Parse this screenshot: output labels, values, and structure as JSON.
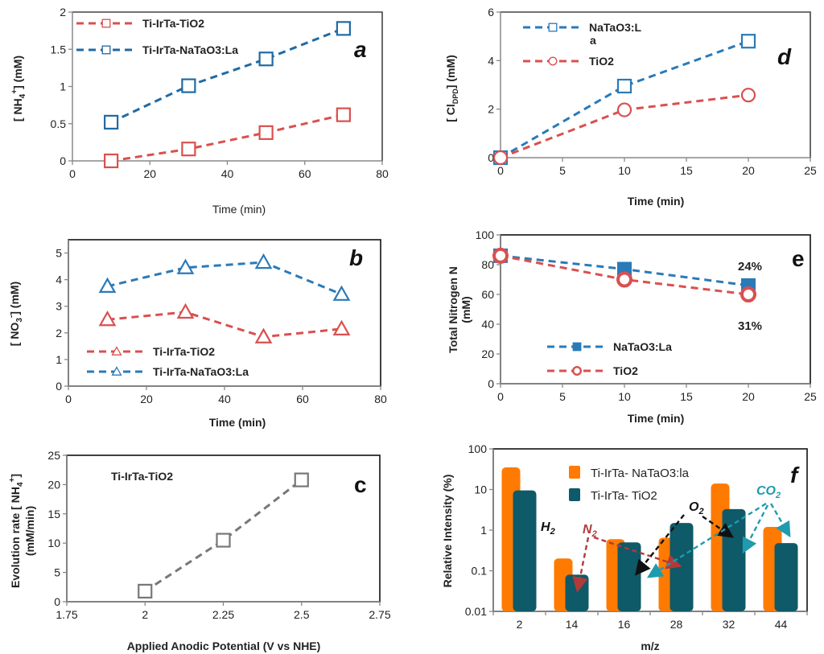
{
  "colors": {
    "red": "#d9504f",
    "blue": "#2a7ab8",
    "darkblue": "#1f6aa5",
    "gray": "#777777",
    "orange": "#ff7a00",
    "teal": "#0e5a68",
    "n2_arrow": "#b03a3a",
    "o2_arrow": "#111111",
    "co2_arrow": "#1f9bb0"
  },
  "chart_data": [
    {
      "id": "a",
      "type": "line",
      "panel_label": "a",
      "xlabel": "Time (min)",
      "ylabel": "[ NH4+ ]  (mM)",
      "xlim": [
        0,
        80
      ],
      "xticks": [
        0,
        20,
        40,
        60,
        80
      ],
      "ylim": [
        0,
        2
      ],
      "yticks": [
        0,
        0.5,
        1,
        1.5,
        2
      ],
      "legend_position": "top-left",
      "series": [
        {
          "name": "Ti-IrTa-TiO2",
          "color_key": "red",
          "marker": "square",
          "x": [
            10,
            30,
            50,
            70
          ],
          "y": [
            0.0,
            0.16,
            0.38,
            0.62
          ]
        },
        {
          "name": "Ti-IrTa-NaTaO3:La",
          "color_key": "darkblue",
          "marker": "square",
          "x": [
            10,
            30,
            50,
            70
          ],
          "y": [
            0.52,
            1.01,
            1.37,
            1.78
          ]
        }
      ]
    },
    {
      "id": "d",
      "type": "line",
      "panel_label": "d",
      "xlabel": "Time (min)",
      "ylabel": "[ Cl DPD ]  (mM)",
      "xlim": [
        0,
        25
      ],
      "xticks": [
        0,
        5,
        10,
        15,
        20,
        25
      ],
      "ylim": [
        0,
        6
      ],
      "yticks": [
        0,
        2,
        4,
        6
      ],
      "legend_position": "top-left",
      "series": [
        {
          "name": "NaTaO3:L\na",
          "color_key": "blue",
          "marker": "square",
          "x": [
            0,
            10,
            20
          ],
          "y": [
            0,
            2.95,
            4.8
          ]
        },
        {
          "name": "TiO2",
          "color_key": "red",
          "marker": "circle",
          "x": [
            0,
            10,
            20
          ],
          "y": [
            0,
            1.97,
            2.58
          ]
        }
      ]
    },
    {
      "id": "b",
      "type": "line",
      "panel_label": "b",
      "xlabel": "Time (min)",
      "ylabel": "[ NO3- ]  (mM)",
      "xlim": [
        0,
        80
      ],
      "xticks": [
        0,
        20,
        40,
        60,
        80
      ],
      "ylim": [
        0,
        5.5
      ],
      "yticks": [
        0,
        1,
        2,
        3,
        4,
        5
      ],
      "legend_position": "bottom-left",
      "series": [
        {
          "name": "Ti-IrTa-TiO2",
          "color_key": "red",
          "marker": "triangle",
          "x": [
            10,
            30,
            50,
            70
          ],
          "y": [
            2.5,
            2.78,
            1.85,
            2.15
          ]
        },
        {
          "name": "Ti-IrTa-NaTaO3:La",
          "color_key": "blue",
          "marker": "triangle",
          "x": [
            10,
            30,
            50,
            70
          ],
          "y": [
            3.75,
            4.45,
            4.65,
            3.45
          ]
        }
      ]
    },
    {
      "id": "e",
      "type": "line",
      "panel_label": "e",
      "xlabel": "Time (min)",
      "ylabel": "Total Nitrogen N (mM)",
      "xlim": [
        0,
        25
      ],
      "xticks": [
        0,
        5,
        10,
        15,
        20,
        25
      ],
      "ylim": [
        0,
        100
      ],
      "yticks": [
        0,
        20,
        40,
        60,
        80,
        100
      ],
      "legend_position": "bottom-left",
      "annotations": [
        "24%",
        "31%"
      ],
      "series": [
        {
          "name": "NaTaO3:La",
          "color_key": "blue",
          "marker": "square-filled",
          "x": [
            0,
            10,
            20
          ],
          "y": [
            86,
            77,
            66
          ]
        },
        {
          "name": "TiO2",
          "color_key": "red",
          "marker": "circle-filled",
          "x": [
            0,
            10,
            20
          ],
          "y": [
            86,
            70,
            60
          ]
        }
      ]
    },
    {
      "id": "c",
      "type": "line",
      "panel_label": "c",
      "xlabel": "Applied Anodic Potential (V vs NHE)",
      "ylabel": "Evolution rate [ NH4+ ] (mM/min)",
      "xlim": [
        1.75,
        2.75
      ],
      "xticks": [
        1.75,
        2,
        2.25,
        2.5,
        2.75
      ],
      "ylim": [
        0,
        25
      ],
      "yticks": [
        0,
        5,
        10,
        15,
        20,
        25
      ],
      "inset_label": "Ti-IrTa-TiO2",
      "series": [
        {
          "name": "Ti-IrTa-TiO2",
          "color_key": "gray",
          "marker": "square",
          "x": [
            2,
            2.25,
            2.5
          ],
          "y": [
            1.8,
            10.5,
            20.8
          ]
        }
      ]
    },
    {
      "id": "f",
      "type": "bar",
      "panel_label": "f",
      "xlabel": "m/z",
      "ylabel": "Relative Intensity (%)",
      "yscale": "log",
      "ylim": [
        0.01,
        100
      ],
      "yticks": [
        0.01,
        0.1,
        1,
        10,
        100
      ],
      "categories": [
        "2",
        "14",
        "16",
        "28",
        "32",
        "44"
      ],
      "legend_position": "top-center",
      "series": [
        {
          "name": "Ti-IrTa- NaTaO3:la",
          "color_key": "orange",
          "values": [
            35,
            0.2,
            0.6,
            0.65,
            14,
            1.2
          ]
        },
        {
          "name": " Ti-IrTa- TiO2",
          "color_key": "teal",
          "values": [
            9.5,
            0.08,
            0.5,
            1.5,
            3.3,
            0.48
          ]
        }
      ],
      "gas_labels": [
        "H2",
        "N2",
        "O2",
        "CO2"
      ]
    }
  ]
}
